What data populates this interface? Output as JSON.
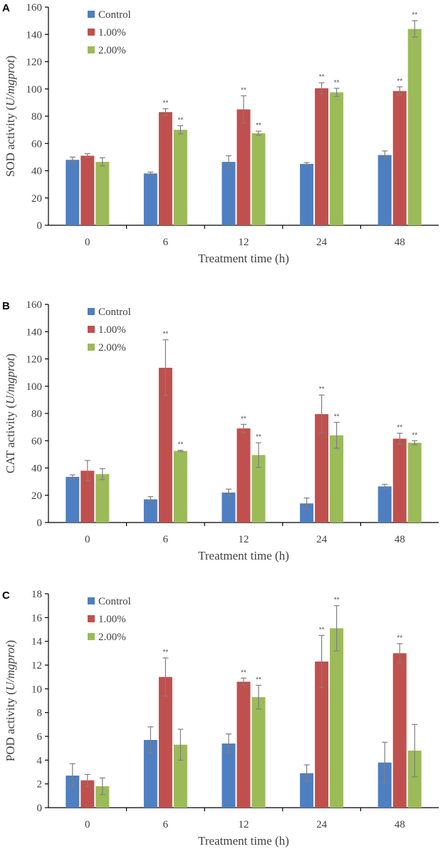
{
  "colors": {
    "Control": "#4e7fc1",
    "1.00%": "#c0504d",
    "2.00%": "#9bbb59"
  },
  "chart_data": [
    {
      "type": "bar",
      "panel_label": "A",
      "title": "",
      "xlabel": "Treatment time (h)",
      "ylabel_prefix": "SOD activity (",
      "ylabel_unit": "U/mgprot",
      "ylabel_suffix": ")",
      "ylim": [
        0,
        160
      ],
      "ytick_step": 20,
      "ytick_labels": [
        "0",
        "20",
        "40",
        "60",
        "80",
        "100",
        "120",
        "140",
        "160"
      ],
      "categories": [
        "0",
        "6",
        "12",
        "24",
        "48"
      ],
      "legend": [
        "Control",
        "1.00%",
        "2.00%"
      ],
      "series": [
        {
          "name": "Control",
          "values": [
            48,
            38,
            46.5,
            45,
            51.5
          ],
          "errors": [
            2,
            1,
            4.5,
            1,
            3
          ],
          "sig": [
            "",
            "",
            "",
            "",
            ""
          ]
        },
        {
          "name": "1.00%",
          "values": [
            51,
            83,
            85,
            100.5,
            98.5
          ],
          "errors": [
            1.5,
            2.5,
            10,
            4,
            3
          ],
          "sig": [
            "",
            "**",
            "**",
            "**",
            "**"
          ]
        },
        {
          "name": "2.00%",
          "values": [
            46.5,
            70,
            67.5,
            97.5,
            144
          ],
          "errors": [
            3,
            3,
            1.5,
            3,
            6
          ],
          "sig": [
            "",
            "**",
            "**",
            "**",
            "**"
          ]
        }
      ]
    },
    {
      "type": "bar",
      "panel_label": "B",
      "title": "",
      "xlabel": "Treatment time (h)",
      "ylabel_prefix": "CAT activity (",
      "ylabel_unit": "U/mgprot",
      "ylabel_suffix": ")",
      "ylim": [
        0,
        160
      ],
      "ytick_step": 20,
      "ytick_labels": [
        "0",
        "20",
        "40",
        "60",
        "80",
        "100",
        "120",
        "140",
        "160"
      ],
      "categories": [
        "0",
        "6",
        "12",
        "24",
        "48"
      ],
      "legend": [
        "Control",
        "1.00%",
        "2.00%"
      ],
      "series": [
        {
          "name": "Control",
          "values": [
            33.5,
            17,
            22,
            14,
            26.5
          ],
          "errors": [
            1.5,
            2,
            2.5,
            4,
            1.5
          ],
          "sig": [
            "",
            "",
            "",
            "",
            ""
          ]
        },
        {
          "name": "1.00%",
          "values": [
            38,
            113.5,
            69,
            79.5,
            61.5
          ],
          "errors": [
            7.5,
            20.5,
            3,
            14,
            4
          ],
          "sig": [
            "",
            "**",
            "**",
            "**",
            "**"
          ]
        },
        {
          "name": "2.00%",
          "values": [
            35.5,
            52.5,
            49.5,
            64,
            58.5
          ],
          "errors": [
            4,
            0.5,
            9,
            9.5,
            1.5
          ],
          "sig": [
            "",
            "**",
            "**",
            "**",
            "**"
          ]
        }
      ]
    },
    {
      "type": "bar",
      "panel_label": "C",
      "title": "",
      "xlabel": "Treatment time (h)",
      "ylabel_prefix": "POD activity (",
      "ylabel_unit": "U/mgprot",
      "ylabel_suffix": ")",
      "ylim": [
        0,
        18
      ],
      "ytick_step": 2,
      "ytick_labels": [
        "0",
        "2",
        "4",
        "6",
        "8",
        "10",
        "12",
        "14",
        "16",
        "18"
      ],
      "categories": [
        "0",
        "6",
        "12",
        "24",
        "48"
      ],
      "legend": [
        "Control",
        "1.00%",
        "2.00%"
      ],
      "series": [
        {
          "name": "Control",
          "values": [
            2.7,
            5.7,
            5.4,
            2.9,
            3.8
          ],
          "errors": [
            1.0,
            1.1,
            0.8,
            0.7,
            1.7
          ],
          "sig": [
            "",
            "",
            "",
            "",
            ""
          ]
        },
        {
          "name": "1.00%",
          "values": [
            2.3,
            11.0,
            10.6,
            12.3,
            13.0
          ],
          "errors": [
            0.5,
            1.6,
            0.3,
            2.2,
            0.8
          ],
          "sig": [
            "",
            "**",
            "**",
            "**",
            "**"
          ]
        },
        {
          "name": "2.00%",
          "values": [
            1.8,
            5.3,
            9.3,
            15.1,
            4.8
          ],
          "errors": [
            0.7,
            1.3,
            1.0,
            1.9,
            2.2
          ],
          "sig": [
            "",
            "",
            "**",
            "**",
            ""
          ]
        }
      ]
    }
  ]
}
